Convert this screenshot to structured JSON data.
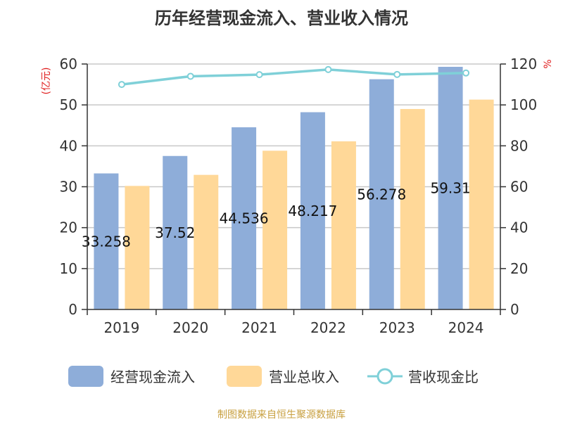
{
  "chart_data": {
    "type": "bar",
    "title": "历年经营现金流入、营业收入情况",
    "categories": [
      "2019",
      "2020",
      "2021",
      "2022",
      "2023",
      "2024"
    ],
    "series": [
      {
        "name": "经营现金流入",
        "kind": "bar",
        "axis": "left",
        "color": "#8eadd9",
        "values": [
          33.258,
          37.52,
          44.536,
          48.217,
          56.278,
          59.31
        ],
        "labels": [
          "33.258",
          "37.52",
          "44.536",
          "48.217",
          "56.278",
          "59.31"
        ]
      },
      {
        "name": "营业总收入",
        "kind": "bar",
        "axis": "left",
        "color": "#ffd898",
        "values": [
          30.2,
          32.9,
          38.8,
          41.1,
          49.0,
          51.3
        ]
      },
      {
        "name": "营收现金比",
        "kind": "line",
        "axis": "right",
        "color": "#7fd0d8",
        "values": [
          110.0,
          114.0,
          114.8,
          117.3,
          114.9,
          115.6
        ]
      }
    ],
    "left_axis": {
      "unit": "(亿元)",
      "range": [
        0,
        60
      ],
      "ticks": [
        0,
        10,
        20,
        30,
        40,
        50,
        60
      ]
    },
    "right_axis": {
      "unit": "%",
      "range": [
        0,
        120
      ],
      "ticks": [
        0,
        20,
        40,
        60,
        80,
        100,
        120
      ]
    },
    "grid": true,
    "legend_position": "bottom",
    "unit_color": "#e02020"
  },
  "footer": {
    "source": "制图数据来自恒生聚源数据库",
    "color": "#c8a040"
  }
}
